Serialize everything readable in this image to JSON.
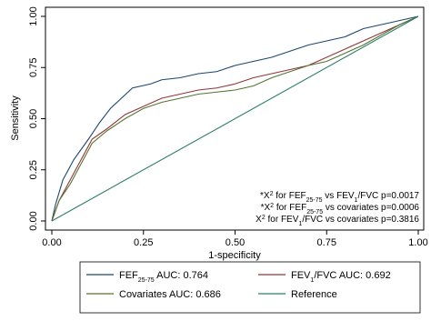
{
  "chart_data": {
    "type": "line",
    "xlabel": "1-specificity",
    "ylabel": "Sensitivity",
    "xlim": [
      0,
      1
    ],
    "ylim": [
      0,
      1
    ],
    "xticks": [
      {
        "value": 0,
        "label": "0.00"
      },
      {
        "value": 0.25,
        "label": "0.25"
      },
      {
        "value": 0.5,
        "label": "0.50"
      },
      {
        "value": 0.75,
        "label": "0.75"
      },
      {
        "value": 1,
        "label": "1.00"
      }
    ],
    "yticks": [
      {
        "value": 0,
        "label": "0.00"
      },
      {
        "value": 0.25,
        "label": "0.25"
      },
      {
        "value": 0.5,
        "label": "0.50"
      },
      {
        "value": 0.75,
        "label": "0.75"
      },
      {
        "value": 1,
        "label": "1.00"
      }
    ],
    "grid": false,
    "legend": "bottom",
    "series": [
      {
        "name": [
          {
            "text": "FEF"
          },
          {
            "text": "25-75",
            "sub": true
          },
          {
            "text": " AUC: 0.764"
          }
        ],
        "color": "#1a476f",
        "x": [
          0,
          0.01,
          0.03,
          0.06,
          0.1,
          0.13,
          0.16,
          0.19,
          0.22,
          0.27,
          0.3,
          0.35,
          0.4,
          0.45,
          0.5,
          0.55,
          0.6,
          0.65,
          0.7,
          0.75,
          0.8,
          0.85,
          0.9,
          0.95,
          1
        ],
        "values": [
          0,
          0.08,
          0.2,
          0.3,
          0.4,
          0.48,
          0.55,
          0.6,
          0.65,
          0.67,
          0.69,
          0.7,
          0.72,
          0.73,
          0.76,
          0.78,
          0.8,
          0.83,
          0.86,
          0.88,
          0.9,
          0.94,
          0.96,
          0.98,
          1
        ]
      },
      {
        "name": [
          {
            "text": "FEV"
          },
          {
            "text": "1",
            "sub": true
          },
          {
            "text": "/FVC AUC: 0.692"
          }
        ],
        "color": "#90353b",
        "x": [
          0,
          0.02,
          0.05,
          0.08,
          0.11,
          0.15,
          0.2,
          0.25,
          0.3,
          0.35,
          0.4,
          0.45,
          0.5,
          0.55,
          0.6,
          0.65,
          0.7,
          0.75,
          0.8,
          0.85,
          0.9,
          0.95,
          1
        ],
        "values": [
          0,
          0.1,
          0.2,
          0.3,
          0.4,
          0.45,
          0.52,
          0.56,
          0.6,
          0.62,
          0.64,
          0.65,
          0.67,
          0.7,
          0.72,
          0.74,
          0.76,
          0.8,
          0.84,
          0.88,
          0.92,
          0.96,
          1
        ]
      },
      {
        "name": [
          {
            "text": "Covariates AUC: 0.686"
          }
        ],
        "color": "#55752f",
        "x": [
          0,
          0.02,
          0.05,
          0.08,
          0.11,
          0.15,
          0.2,
          0.25,
          0.3,
          0.35,
          0.4,
          0.45,
          0.5,
          0.55,
          0.6,
          0.65,
          0.7,
          0.75,
          0.8,
          0.85,
          0.9,
          0.95,
          1
        ],
        "values": [
          0,
          0.1,
          0.18,
          0.28,
          0.38,
          0.44,
          0.5,
          0.55,
          0.58,
          0.6,
          0.62,
          0.63,
          0.64,
          0.66,
          0.7,
          0.73,
          0.76,
          0.78,
          0.82,
          0.86,
          0.91,
          0.96,
          1
        ]
      },
      {
        "name": [
          {
            "text": "Reference"
          }
        ],
        "color": "#2e7d6e",
        "x": [
          0,
          1
        ],
        "values": [
          0,
          1
        ]
      }
    ],
    "annotations": [
      [
        {
          "text": "*X"
        },
        {
          "text": "2",
          "sup": true
        },
        {
          "text": " for FEF"
        },
        {
          "text": "25-75",
          "sub": true
        },
        {
          "text": " vs FEV"
        },
        {
          "text": "1",
          "sub": true
        },
        {
          "text": "/FVC p=0.0017"
        }
      ],
      [
        {
          "text": "*X"
        },
        {
          "text": "2",
          "sup": true
        },
        {
          "text": " for FEF"
        },
        {
          "text": "25-75",
          "sub": true
        },
        {
          "text": " vs covariates p=0.0006"
        }
      ],
      [
        {
          "text": "X"
        },
        {
          "text": "2",
          "sup": true
        },
        {
          "text": " for FEV"
        },
        {
          "text": "1",
          "sub": true
        },
        {
          "text": "/FVC vs covariates p=0.3816"
        }
      ]
    ]
  }
}
